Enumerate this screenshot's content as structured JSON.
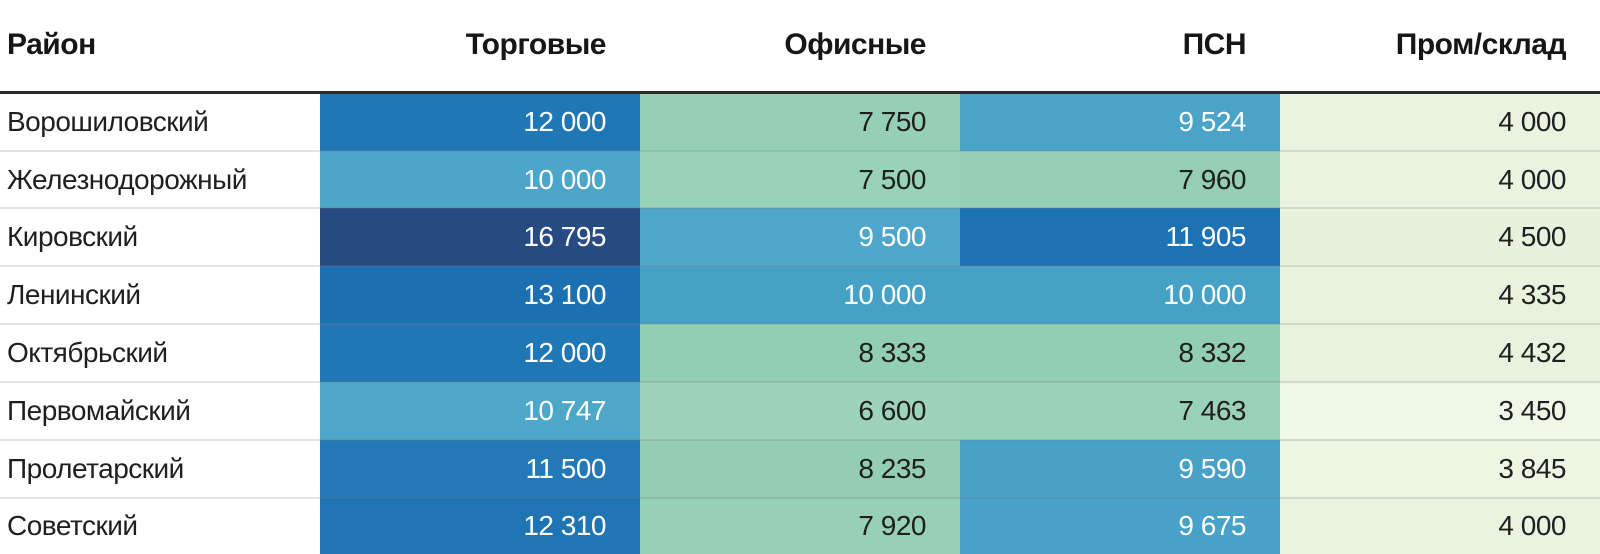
{
  "chart_data": {
    "type": "heatmap",
    "title": "",
    "rows": [
      "Ворошиловский",
      "Железнодорожный",
      "Кировский",
      "Ленинский",
      "Октябрьский",
      "Первомайский",
      "Пролетарский",
      "Советский"
    ],
    "columns": [
      "Торговые",
      "Офисные",
      "ПСН",
      "Пром/склад"
    ],
    "values": [
      [
        12000,
        7750,
        9524,
        4000
      ],
      [
        10000,
        7500,
        7960,
        4000
      ],
      [
        16795,
        9500,
        11905,
        4500
      ],
      [
        13100,
        10000,
        10000,
        4335
      ],
      [
        12000,
        8333,
        8332,
        4432
      ],
      [
        10747,
        6600,
        7463,
        3450
      ],
      [
        11500,
        8235,
        9590,
        3845
      ],
      [
        12310,
        7920,
        9675,
        4000
      ]
    ],
    "value_range": [
      3450,
      16795
    ],
    "legend": "none",
    "grid": "off",
    "color_scale_stops": {
      "lowest_light_green": "#eaf5e1",
      "mint_green": "#96d1b7",
      "light_blue": "#4aa4c8",
      "blue": "#1f74b4",
      "navy_max": "#284a83"
    }
  },
  "table": {
    "header": {
      "district": "Район",
      "cols": [
        "Торговые",
        "Офисные",
        "ПСН",
        "Пром/склад"
      ]
    },
    "header_underline_color": "#2b2b2b",
    "dark_text_color": "#1f1f1f",
    "light_text_color": "#ffffff",
    "rows": [
      {
        "district": "Ворошиловский",
        "cells": [
          {
            "text": "12 000",
            "bg": "#2077b5",
            "fg": "#ffffff"
          },
          {
            "text": "7 750",
            "bg": "#95d0b5",
            "fg": "#1f1f1f"
          },
          {
            "text": "9 524",
            "bg": "#4aa4c8",
            "fg": "#ffffff"
          },
          {
            "text": "4 000",
            "bg": "#e9f4e0",
            "fg": "#1f1f1f"
          }
        ]
      },
      {
        "district": "Железнодорожный",
        "cells": [
          {
            "text": "10 000",
            "bg": "#4ba6c9",
            "fg": "#ffffff"
          },
          {
            "text": "7 500",
            "bg": "#98d2b7",
            "fg": "#1f1f1f"
          },
          {
            "text": "7 960",
            "bg": "#94cfb4",
            "fg": "#1f1f1f"
          },
          {
            "text": "4 000",
            "bg": "#e9f4e0",
            "fg": "#1f1f1f"
          }
        ]
      },
      {
        "district": "Кировский",
        "cells": [
          {
            "text": "16 795",
            "bg": "#284a83",
            "fg": "#ffffff"
          },
          {
            "text": "9 500",
            "bg": "#4ea7ca",
            "fg": "#ffffff"
          },
          {
            "text": "11 905",
            "bg": "#1d72b4",
            "fg": "#ffffff"
          },
          {
            "text": "4 500",
            "bg": "#e6f2dd",
            "fg": "#1f1f1f"
          }
        ]
      },
      {
        "district": "Ленинский",
        "cells": [
          {
            "text": "13 100",
            "bg": "#1c70b1",
            "fg": "#ffffff"
          },
          {
            "text": "10 000",
            "bg": "#46a1c7",
            "fg": "#ffffff"
          },
          {
            "text": "10 000",
            "bg": "#46a1c7",
            "fg": "#ffffff"
          },
          {
            "text": "4 335",
            "bg": "#e8f3de",
            "fg": "#1f1f1f"
          }
        ]
      },
      {
        "district": "Октябрьский",
        "cells": [
          {
            "text": "12 000",
            "bg": "#2077b5",
            "fg": "#ffffff"
          },
          {
            "text": "8 333",
            "bg": "#92ceb2",
            "fg": "#1f1f1f"
          },
          {
            "text": "8 332",
            "bg": "#92ceb2",
            "fg": "#1f1f1f"
          },
          {
            "text": "4 432",
            "bg": "#e7f3de",
            "fg": "#1f1f1f"
          }
        ]
      },
      {
        "district": "Первомайский",
        "cells": [
          {
            "text": "10 747",
            "bg": "#4ca7c9",
            "fg": "#ffffff"
          },
          {
            "text": "6 600",
            "bg": "#9dd4b9",
            "fg": "#1f1f1f"
          },
          {
            "text": "7 463",
            "bg": "#99d2b6",
            "fg": "#1f1f1f"
          },
          {
            "text": "3 450",
            "bg": "#eff8e7",
            "fg": "#1f1f1f"
          }
        ]
      },
      {
        "district": "Пролетарский",
        "cells": [
          {
            "text": "11 500",
            "bg": "#2279b6",
            "fg": "#ffffff"
          },
          {
            "text": "8 235",
            "bg": "#93ceb2",
            "fg": "#1f1f1f"
          },
          {
            "text": "9 590",
            "bg": "#48a2c8",
            "fg": "#ffffff"
          },
          {
            "text": "3 845",
            "bg": "#ecf6e3",
            "fg": "#1f1f1f"
          }
        ]
      },
      {
        "district": "Советский",
        "cells": [
          {
            "text": "12 310",
            "bg": "#1f74b4",
            "fg": "#ffffff"
          },
          {
            "text": "7 920",
            "bg": "#96d0b5",
            "fg": "#1f1f1f"
          },
          {
            "text": "9 675",
            "bg": "#47a1c8",
            "fg": "#ffffff"
          },
          {
            "text": "4 000",
            "bg": "#e9f4e0",
            "fg": "#1f1f1f"
          }
        ]
      }
    ]
  }
}
